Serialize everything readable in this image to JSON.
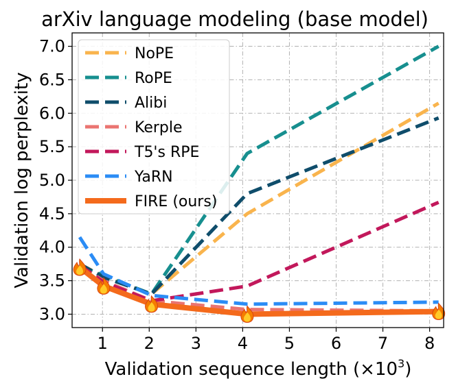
{
  "chart_data": {
    "type": "line",
    "title": "arXiv language modeling (base model)",
    "xlabel": "Validation sequence length (×10",
    "xlabel_sup": "3",
    "xlabel_suffix": ")",
    "ylabel": "Validation log perplexity",
    "xlim": [
      0.35,
      8.3
    ],
    "ylim": [
      2.8,
      7.2
    ],
    "xticks": [
      1,
      2,
      3,
      4,
      5,
      6,
      7,
      8
    ],
    "xtick_labels": [
      "1",
      "2",
      "3",
      "4",
      "5",
      "6",
      "7",
      "8"
    ],
    "yticks": [
      3.0,
      3.5,
      4.0,
      4.5,
      5.0,
      5.5,
      6.0,
      6.5,
      7.0
    ],
    "ytick_labels": [
      "3.0",
      "3.5",
      "4.0",
      "4.5",
      "5.0",
      "5.5",
      "6.0",
      "6.5",
      "7.0"
    ],
    "grid": true,
    "legend_position": "top-left",
    "x": [
      0.512,
      1.024,
      2.048,
      4.096,
      8.192
    ],
    "series": [
      {
        "name": "NoPE",
        "color": "#f9b44d",
        "dashed": true,
        "values": [
          3.75,
          3.56,
          3.3,
          4.5,
          6.15
        ]
      },
      {
        "name": "RoPE",
        "color": "#178f8f",
        "dashed": true,
        "values": [
          3.72,
          3.58,
          3.3,
          5.4,
          7.0
        ]
      },
      {
        "name": "Alibi",
        "color": "#0f4d6b",
        "dashed": true,
        "values": [
          3.75,
          3.55,
          3.3,
          4.8,
          5.93
        ]
      },
      {
        "name": "Kerple",
        "color": "#ea7471",
        "dashed": true,
        "values": [
          3.72,
          3.5,
          3.2,
          3.07,
          3.05
        ]
      },
      {
        "name": "T5's RPE",
        "color": "#c2185b",
        "dashed": true,
        "values": [
          3.73,
          3.48,
          3.2,
          3.42,
          4.67
        ]
      },
      {
        "name": "YaRN",
        "color": "#2b8cf5",
        "dashed": true,
        "values": [
          4.15,
          3.6,
          3.28,
          3.15,
          3.18
        ]
      },
      {
        "name": "FIRE (ours)",
        "color": "#f46a1c",
        "dashed": false,
        "values": [
          3.7,
          3.42,
          3.15,
          3.0,
          3.04
        ]
      }
    ],
    "marker_icon": "fire-icon"
  }
}
